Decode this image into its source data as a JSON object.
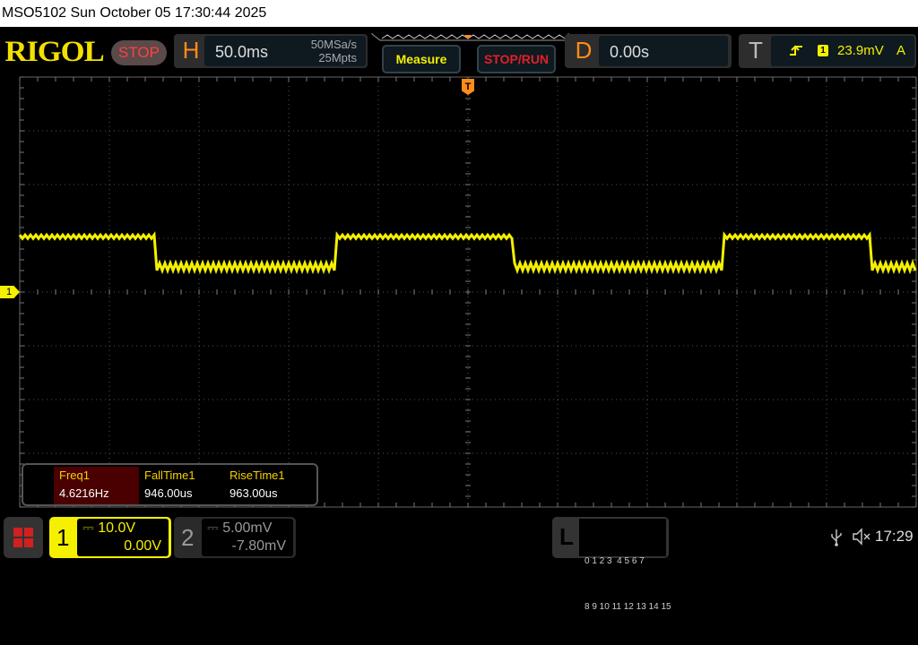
{
  "title_bar": "MSO5102  Sun October 05 17:30:44 2025",
  "logo": "RIGOL",
  "run_status": "STOP",
  "horizontal": {
    "letter": "H",
    "timebase": "50.0ms",
    "sample_rate": "50MSa/s",
    "memory_depth": "25Mpts"
  },
  "buttons": {
    "measure": "Measure",
    "stop_run": "STOP/RUN"
  },
  "delay": {
    "letter": "D",
    "value": "0.00s"
  },
  "trigger": {
    "letter": "T",
    "channel": "1",
    "level": "23.9mV",
    "mode": "A",
    "marker": "T"
  },
  "measurements": [
    {
      "label": "Freq1",
      "value": "4.6216Hz"
    },
    {
      "label": "FallTime1",
      "value": "946.00us"
    },
    {
      "label": "RiseTime1",
      "value": "963.00us"
    }
  ],
  "channels": [
    {
      "num": "1",
      "scale": "10.0V",
      "offset": "0.00V",
      "color": "#f5f000",
      "active": true
    },
    {
      "num": "2",
      "scale": "5.00mV",
      "offset": "-7.80mV",
      "color": "#888888",
      "active": false
    }
  ],
  "ch1_marker": "1",
  "logic": {
    "letter": "L",
    "row1": "0 1 2 3  4 5 6 7",
    "row2": "8 9 10 11 12 13 14 15"
  },
  "status": {
    "time": "17:29",
    "usb": "usb-icon",
    "sound": "muted-speaker-icon"
  },
  "waveform": {
    "color": "#f5f000",
    "time_per_div_ms": 50,
    "volts_per_div": 10,
    "high_v": 10.3,
    "low_v": 4.7,
    "edges_ms": [
      {
        "t": -173.5,
        "type": "fall"
      },
      {
        "t": -73.5,
        "type": "rise"
      },
      {
        "t": 26,
        "type": "fall"
      },
      {
        "t": 142.5,
        "type": "rise"
      },
      {
        "t": 225.5,
        "type": "fall"
      }
    ],
    "start_level": "high"
  }
}
